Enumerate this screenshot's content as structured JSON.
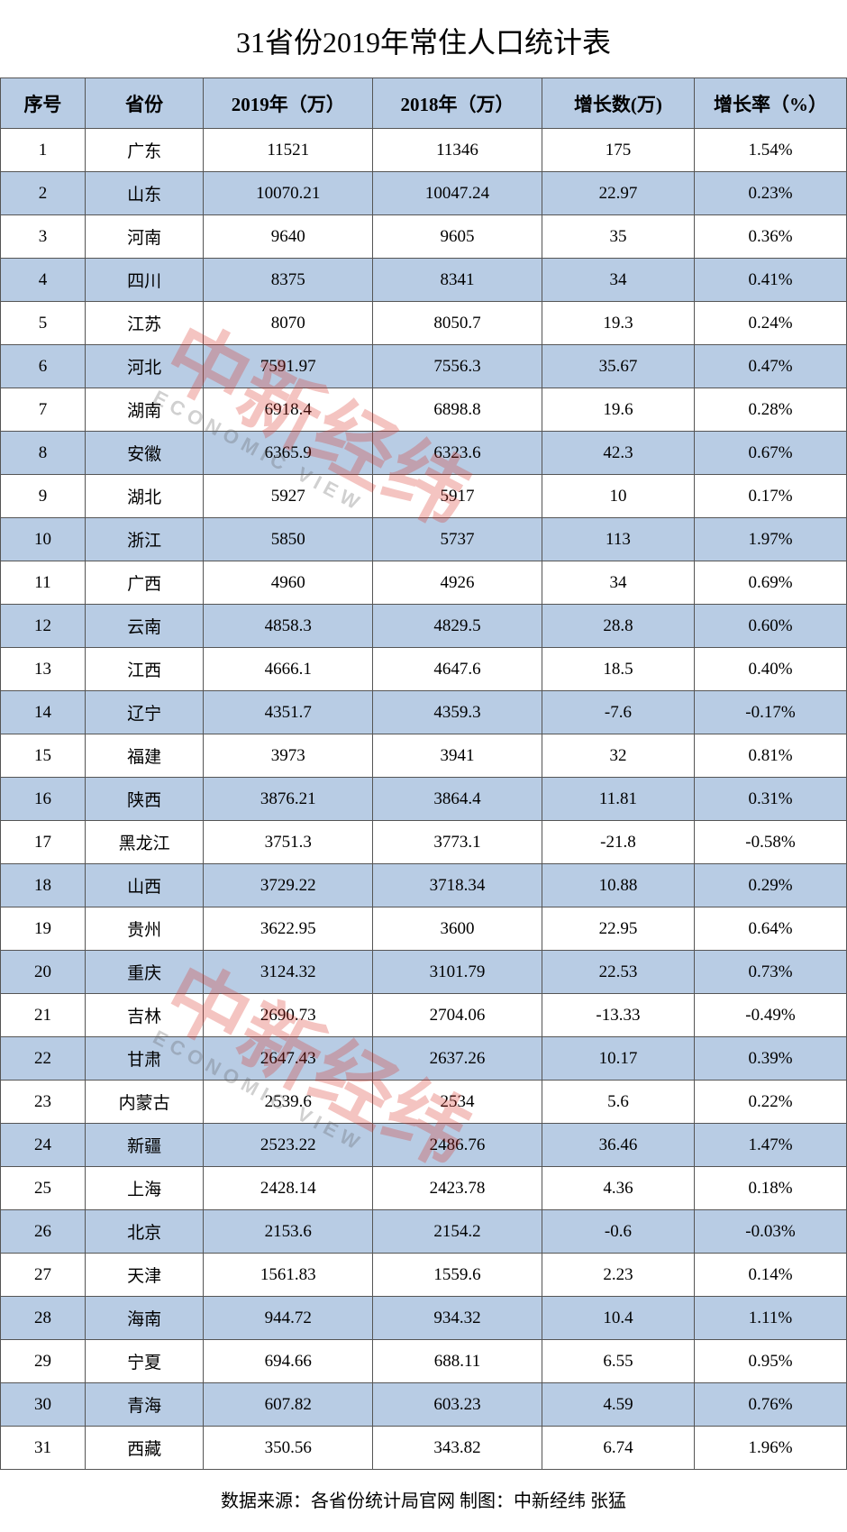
{
  "title": "31省份2019年常住人口统计表",
  "watermark": {
    "cn": "中新经纬",
    "en": "ECONOMIC VIEW"
  },
  "table": {
    "type": "table",
    "header_bg_color": "#b8cce4",
    "row_alt_bg_color": "#b8cce4",
    "row_bg_color": "#ffffff",
    "border_color": "#555555",
    "title_fontsize": 32,
    "header_fontsize": 21,
    "cell_fontsize": 19,
    "columns": [
      {
        "key": "num",
        "label": "序号",
        "width": "10%"
      },
      {
        "key": "province",
        "label": "省份",
        "width": "14%"
      },
      {
        "key": "y2019",
        "label": "2019年（万）",
        "width": "20%"
      },
      {
        "key": "y2018",
        "label": "2018年（万）",
        "width": "20%"
      },
      {
        "key": "growth",
        "label": "增长数(万)",
        "width": "18%"
      },
      {
        "key": "rate",
        "label": "增长率（%）",
        "width": "18%"
      }
    ],
    "rows": [
      {
        "num": "1",
        "province": "广东",
        "y2019": "11521",
        "y2018": "11346",
        "growth": "175",
        "rate": "1.54%"
      },
      {
        "num": "2",
        "province": "山东",
        "y2019": "10070.21",
        "y2018": "10047.24",
        "growth": "22.97",
        "rate": "0.23%"
      },
      {
        "num": "3",
        "province": "河南",
        "y2019": "9640",
        "y2018": "9605",
        "growth": "35",
        "rate": "0.36%"
      },
      {
        "num": "4",
        "province": "四川",
        "y2019": "8375",
        "y2018": "8341",
        "growth": "34",
        "rate": "0.41%"
      },
      {
        "num": "5",
        "province": "江苏",
        "y2019": "8070",
        "y2018": "8050.7",
        "growth": "19.3",
        "rate": "0.24%"
      },
      {
        "num": "6",
        "province": "河北",
        "y2019": "7591.97",
        "y2018": "7556.3",
        "growth": "35.67",
        "rate": "0.47%"
      },
      {
        "num": "7",
        "province": "湖南",
        "y2019": "6918.4",
        "y2018": "6898.8",
        "growth": "19.6",
        "rate": "0.28%"
      },
      {
        "num": "8",
        "province": "安徽",
        "y2019": "6365.9",
        "y2018": "6323.6",
        "growth": "42.3",
        "rate": "0.67%"
      },
      {
        "num": "9",
        "province": "湖北",
        "y2019": "5927",
        "y2018": "5917",
        "growth": "10",
        "rate": "0.17%"
      },
      {
        "num": "10",
        "province": "浙江",
        "y2019": "5850",
        "y2018": "5737",
        "growth": "113",
        "rate": "1.97%"
      },
      {
        "num": "11",
        "province": "广西",
        "y2019": "4960",
        "y2018": "4926",
        "growth": "34",
        "rate": "0.69%"
      },
      {
        "num": "12",
        "province": "云南",
        "y2019": "4858.3",
        "y2018": "4829.5",
        "growth": "28.8",
        "rate": "0.60%"
      },
      {
        "num": "13",
        "province": "江西",
        "y2019": "4666.1",
        "y2018": "4647.6",
        "growth": "18.5",
        "rate": "0.40%"
      },
      {
        "num": "14",
        "province": "辽宁",
        "y2019": "4351.7",
        "y2018": "4359.3",
        "growth": "-7.6",
        "rate": "-0.17%"
      },
      {
        "num": "15",
        "province": "福建",
        "y2019": "3973",
        "y2018": "3941",
        "growth": "32",
        "rate": "0.81%"
      },
      {
        "num": "16",
        "province": "陕西",
        "y2019": "3876.21",
        "y2018": "3864.4",
        "growth": "11.81",
        "rate": "0.31%"
      },
      {
        "num": "17",
        "province": "黑龙江",
        "y2019": "3751.3",
        "y2018": "3773.1",
        "growth": "-21.8",
        "rate": "-0.58%"
      },
      {
        "num": "18",
        "province": "山西",
        "y2019": "3729.22",
        "y2018": "3718.34",
        "growth": "10.88",
        "rate": "0.29%"
      },
      {
        "num": "19",
        "province": "贵州",
        "y2019": "3622.95",
        "y2018": "3600",
        "growth": "22.95",
        "rate": "0.64%"
      },
      {
        "num": "20",
        "province": "重庆",
        "y2019": "3124.32",
        "y2018": "3101.79",
        "growth": "22.53",
        "rate": "0.73%"
      },
      {
        "num": "21",
        "province": "吉林",
        "y2019": "2690.73",
        "y2018": "2704.06",
        "growth": "-13.33",
        "rate": "-0.49%"
      },
      {
        "num": "22",
        "province": "甘肃",
        "y2019": "2647.43",
        "y2018": "2637.26",
        "growth": "10.17",
        "rate": "0.39%"
      },
      {
        "num": "23",
        "province": "内蒙古",
        "y2019": "2539.6",
        "y2018": "2534",
        "growth": "5.6",
        "rate": "0.22%"
      },
      {
        "num": "24",
        "province": "新疆",
        "y2019": "2523.22",
        "y2018": "2486.76",
        "growth": "36.46",
        "rate": "1.47%"
      },
      {
        "num": "25",
        "province": "上海",
        "y2019": "2428.14",
        "y2018": "2423.78",
        "growth": "4.36",
        "rate": "0.18%"
      },
      {
        "num": "26",
        "province": "北京",
        "y2019": "2153.6",
        "y2018": "2154.2",
        "growth": "-0.6",
        "rate": "-0.03%"
      },
      {
        "num": "27",
        "province": "天津",
        "y2019": "1561.83",
        "y2018": "1559.6",
        "growth": "2.23",
        "rate": "0.14%"
      },
      {
        "num": "28",
        "province": "海南",
        "y2019": "944.72",
        "y2018": "934.32",
        "growth": "10.4",
        "rate": "1.11%"
      },
      {
        "num": "29",
        "province": "宁夏",
        "y2019": "694.66",
        "y2018": "688.11",
        "growth": "6.55",
        "rate": "0.95%"
      },
      {
        "num": "30",
        "province": "青海",
        "y2019": "607.82",
        "y2018": "603.23",
        "growth": "4.59",
        "rate": "0.76%"
      },
      {
        "num": "31",
        "province": "西藏",
        "y2019": "350.56",
        "y2018": "343.82",
        "growth": "6.74",
        "rate": "1.96%"
      }
    ]
  },
  "footer": "数据来源：各省份统计局官网  制图：中新经纬 张猛"
}
